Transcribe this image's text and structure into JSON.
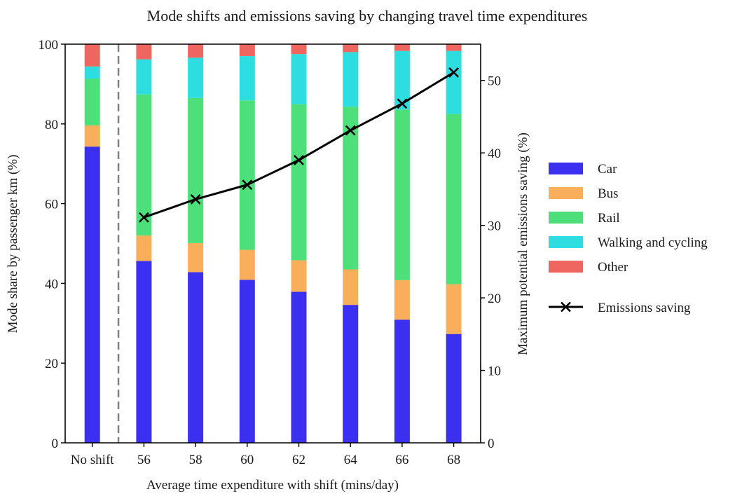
{
  "chart_data": {
    "type": "bar",
    "stacked": true,
    "title": "Mode shifts and emissions saving by changing travel time expenditures",
    "xlabel": "Average time expenditure with shift (mins/day)",
    "ylabel": "Mode share by passenger km (%)",
    "y2label": "Maximum potential emissions saving (%)",
    "categories": [
      "No shift",
      "56",
      "58",
      "60",
      "62",
      "64",
      "66",
      "68"
    ],
    "ylim": [
      0,
      100
    ],
    "y2lim": [
      0,
      55
    ],
    "yticks": [
      0,
      20,
      40,
      60,
      80,
      100
    ],
    "y2ticks": [
      0,
      10,
      20,
      30,
      40,
      50
    ],
    "separator_after_category": "No shift",
    "series": [
      {
        "name": "Car",
        "color": "#3b2ff0",
        "values": [
          74.3,
          45.6,
          42.8,
          40.9,
          37.9,
          34.6,
          30.9,
          27.3
        ]
      },
      {
        "name": "Bus",
        "color": "#f9ae5b",
        "values": [
          5.3,
          6.4,
          7.3,
          7.5,
          7.9,
          8.9,
          9.9,
          12.5
        ]
      },
      {
        "name": "Rail",
        "color": "#4cdf7a",
        "values": [
          11.7,
          35.4,
          36.4,
          37.5,
          39.1,
          40.8,
          42.8,
          42.7
        ]
      },
      {
        "name": "Walking and cycling",
        "color": "#2ddde0",
        "values": [
          3.1,
          8.8,
          10.1,
          11.1,
          12.6,
          13.7,
          14.7,
          15.8
        ]
      },
      {
        "name": "Other",
        "color": "#ef6560",
        "values": [
          5.6,
          3.8,
          3.4,
          3.0,
          2.5,
          2.0,
          1.7,
          1.7
        ]
      }
    ],
    "line_series": {
      "name": "Emissions saving",
      "color": "#000000",
      "marker": "x",
      "axis": "right",
      "categories": [
        "56",
        "58",
        "60",
        "62",
        "64",
        "66",
        "68"
      ],
      "values": [
        31.1,
        33.6,
        35.6,
        39.0,
        43.1,
        46.8,
        51.1
      ]
    },
    "legend": {
      "placement": "right",
      "entries": [
        "Car",
        "Bus",
        "Rail",
        "Walking and cycling",
        "Other",
        "Emissions saving"
      ]
    },
    "grid": false
  }
}
